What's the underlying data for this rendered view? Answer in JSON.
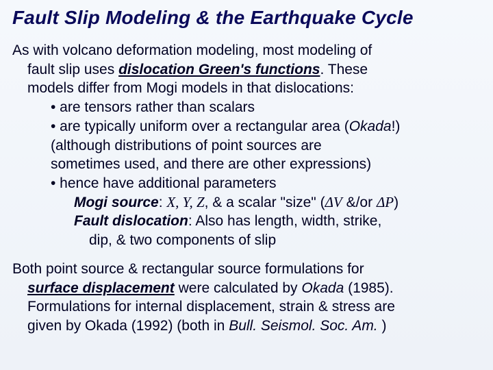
{
  "title": "Fault Slip Modeling & the Earthquake Cycle",
  "p1_l1": "As with volcano deformation modeling, most modeling of",
  "p1_l2a": "fault slip uses ",
  "p1_l2b": "dislocation Green's functions",
  "p1_l2c": ". These",
  "p1_l3": "models differ from Mogi models in that dislocations:",
  "b1": "• are tensors rather than scalars",
  "b2a": "• are typically uniform over a rectangular area (",
  "b2b": "Okada",
  "b2c": "!)",
  "b2_l2": "(although distributions of point sources are",
  "b2_l3": "sometimes used, and there are other expressions)",
  "b3": "• hence have additional parameters",
  "mogi_label": "Mogi source",
  "mogi_colon": ": ",
  "mogi_vars": "X, Y, Z",
  "mogi_mid": ", & a scalar \"size\" (",
  "mogi_dv": "ΔV",
  "mogi_andor": " &/or ",
  "mogi_dp": "ΔP",
  "mogi_close": ")",
  "fault_label": "Fault dislocation",
  "fault_rest1": ": Also has length, width, strike,",
  "fault_rest2": "dip, & two components of slip",
  "p2_l1": "Both point source & rectangular source formulations for",
  "p2_l2a": "surface displacement",
  "p2_l2b": " were calculated by ",
  "p2_l2c": "Okada",
  "p2_l2d": " (1985).",
  "p2_l3": "Formulations for internal displacement, strain & stress are",
  "p2_l4a": "given by Okada (1992) (both in ",
  "p2_l4b": "Bull. Seismol. Soc. Am.",
  "p2_l4c": " )",
  "colors": {
    "title": "#0a0a5a",
    "body": "#000022",
    "bg_top": "#f5f8fc",
    "bg_bottom": "#eef2f8"
  },
  "fontsize": {
    "title": 28,
    "body": 21
  }
}
